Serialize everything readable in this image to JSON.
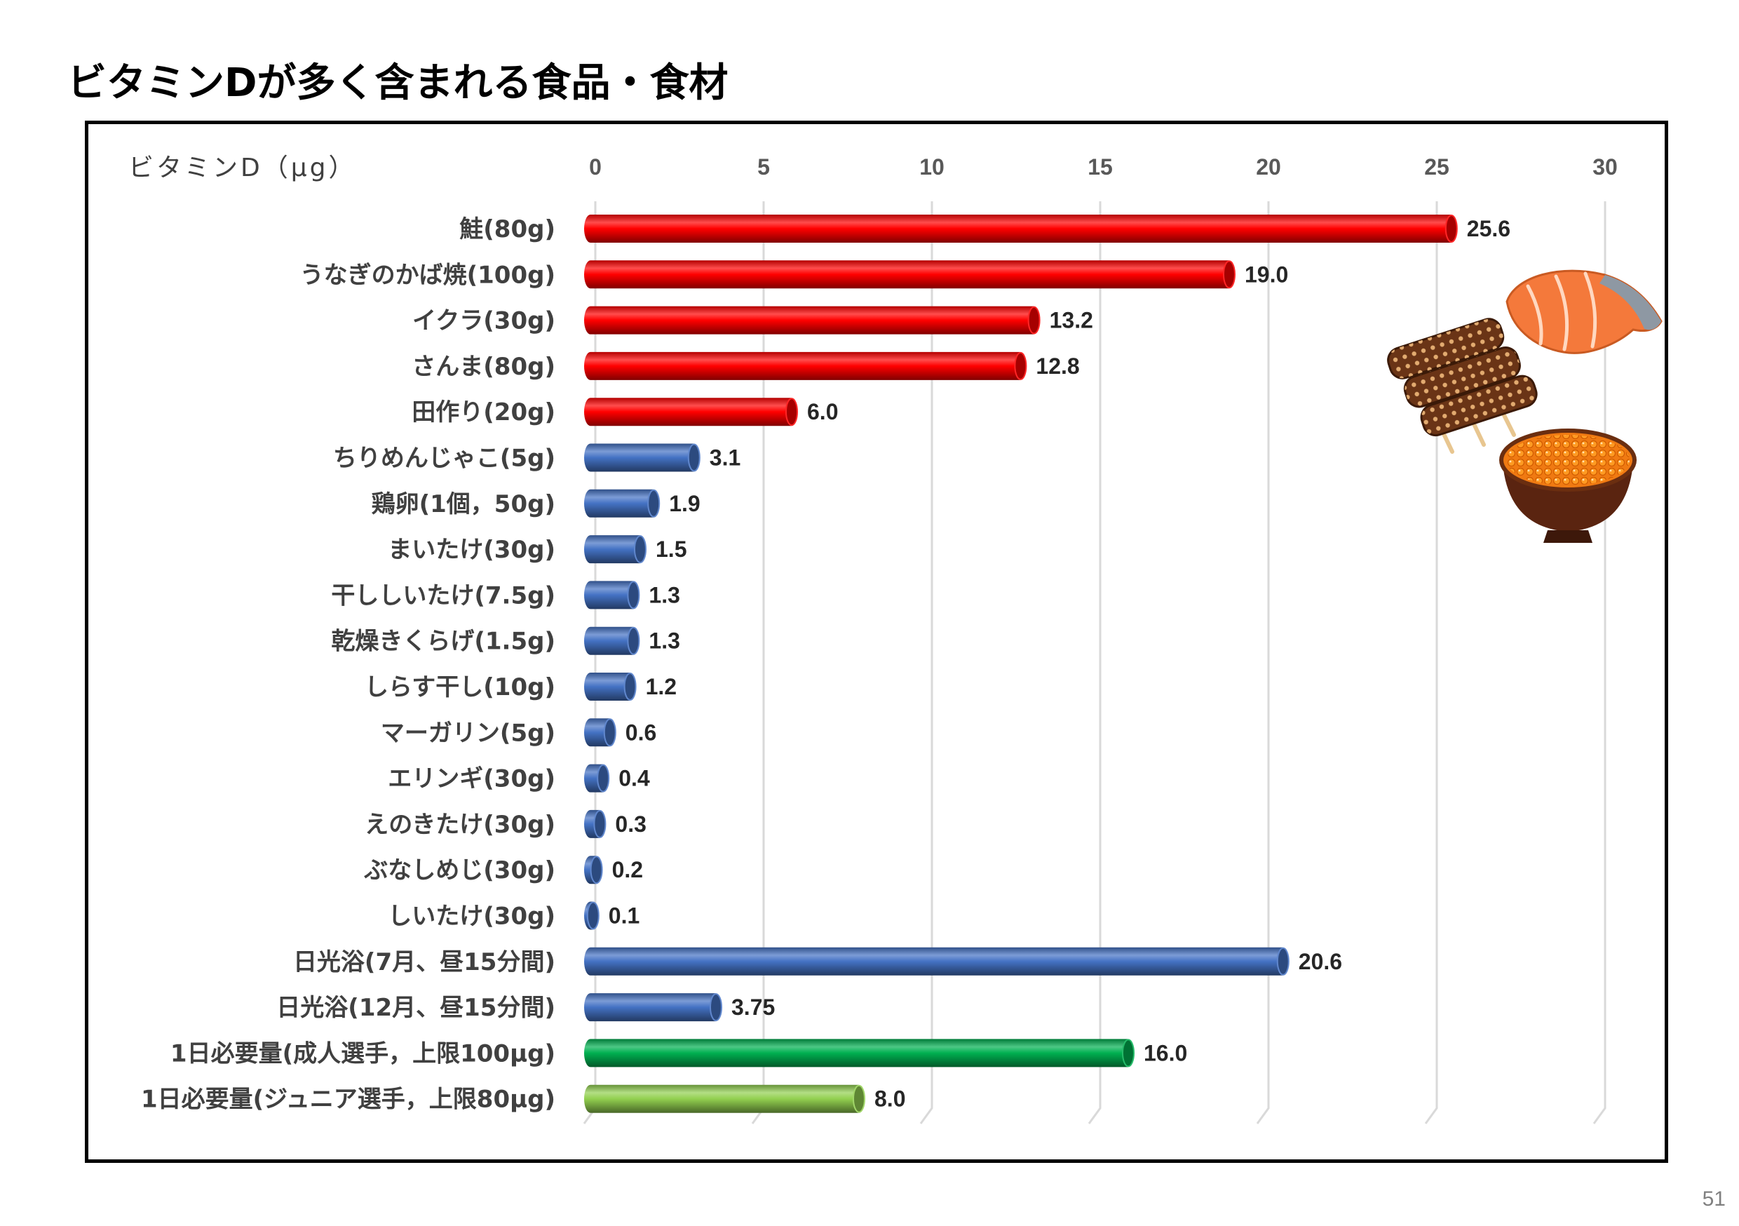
{
  "page": {
    "title": "ビタミンDが多く含まれる食品・食材",
    "page_number": "51"
  },
  "chart_data": {
    "type": "bar",
    "orientation": "horizontal",
    "xlabel": "ビタミンD（μg）",
    "xlim": [
      0,
      30
    ],
    "x_ticks": [
      0,
      5,
      10,
      15,
      20,
      25,
      30
    ],
    "x_tick_labels": [
      "0",
      "5",
      "10",
      "15",
      "20",
      "25",
      "30"
    ],
    "x_axis_position": "top",
    "grid": true,
    "legend": "none",
    "categories": [
      "鮭(80g)",
      "うなぎのかば焼(100g)",
      "イクラ(30g)",
      "さんま(80g)",
      "田作り(20g)",
      "ちりめんじゃこ(5g)",
      "鶏卵(1個，50g)",
      "まいたけ(30g)",
      "干ししいたけ(7.5g)",
      "乾燥きくらげ(1.5g)",
      "しらす干し(10g)",
      "マーガリン(5g)",
      "エリンギ(30g)",
      "えのきたけ(30g)",
      "ぶなしめじ(30g)",
      "しいたけ(30g)",
      "日光浴(7月、昼15分間)",
      "日光浴(12月、昼15分間)",
      "1日必要量(成人選手，上限100μg)",
      "1日必要量(ジュニア選手，上限80μg)"
    ],
    "values": [
      25.6,
      19.0,
      13.2,
      12.8,
      6.0,
      3.1,
      1.9,
      1.5,
      1.3,
      1.3,
      1.2,
      0.6,
      0.4,
      0.3,
      0.2,
      0.1,
      20.6,
      3.75,
      16.0,
      8.0
    ],
    "data_labels": [
      "25.6",
      "19.0",
      "13.2",
      "12.8",
      "6.0",
      "3.1",
      "1.9",
      "1.5",
      "1.3",
      "1.3",
      "1.2",
      "0.6",
      "0.4",
      "0.3",
      "0.2",
      "0.1",
      "20.6",
      "3.75",
      "16.0",
      "8.0"
    ],
    "bar_colors": [
      "#ff0000",
      "#ff0000",
      "#ff0000",
      "#ff0000",
      "#ff0000",
      "#4472c4",
      "#4472c4",
      "#4472c4",
      "#4472c4",
      "#4472c4",
      "#4472c4",
      "#4472c4",
      "#4472c4",
      "#4472c4",
      "#4472c4",
      "#4472c4",
      "#4472c4",
      "#4472c4",
      "#00b050",
      "#92d050"
    ]
  },
  "illustrations": [
    "salmon-icon",
    "eel-kabayaki-icon",
    "ikura-bowl-icon"
  ]
}
